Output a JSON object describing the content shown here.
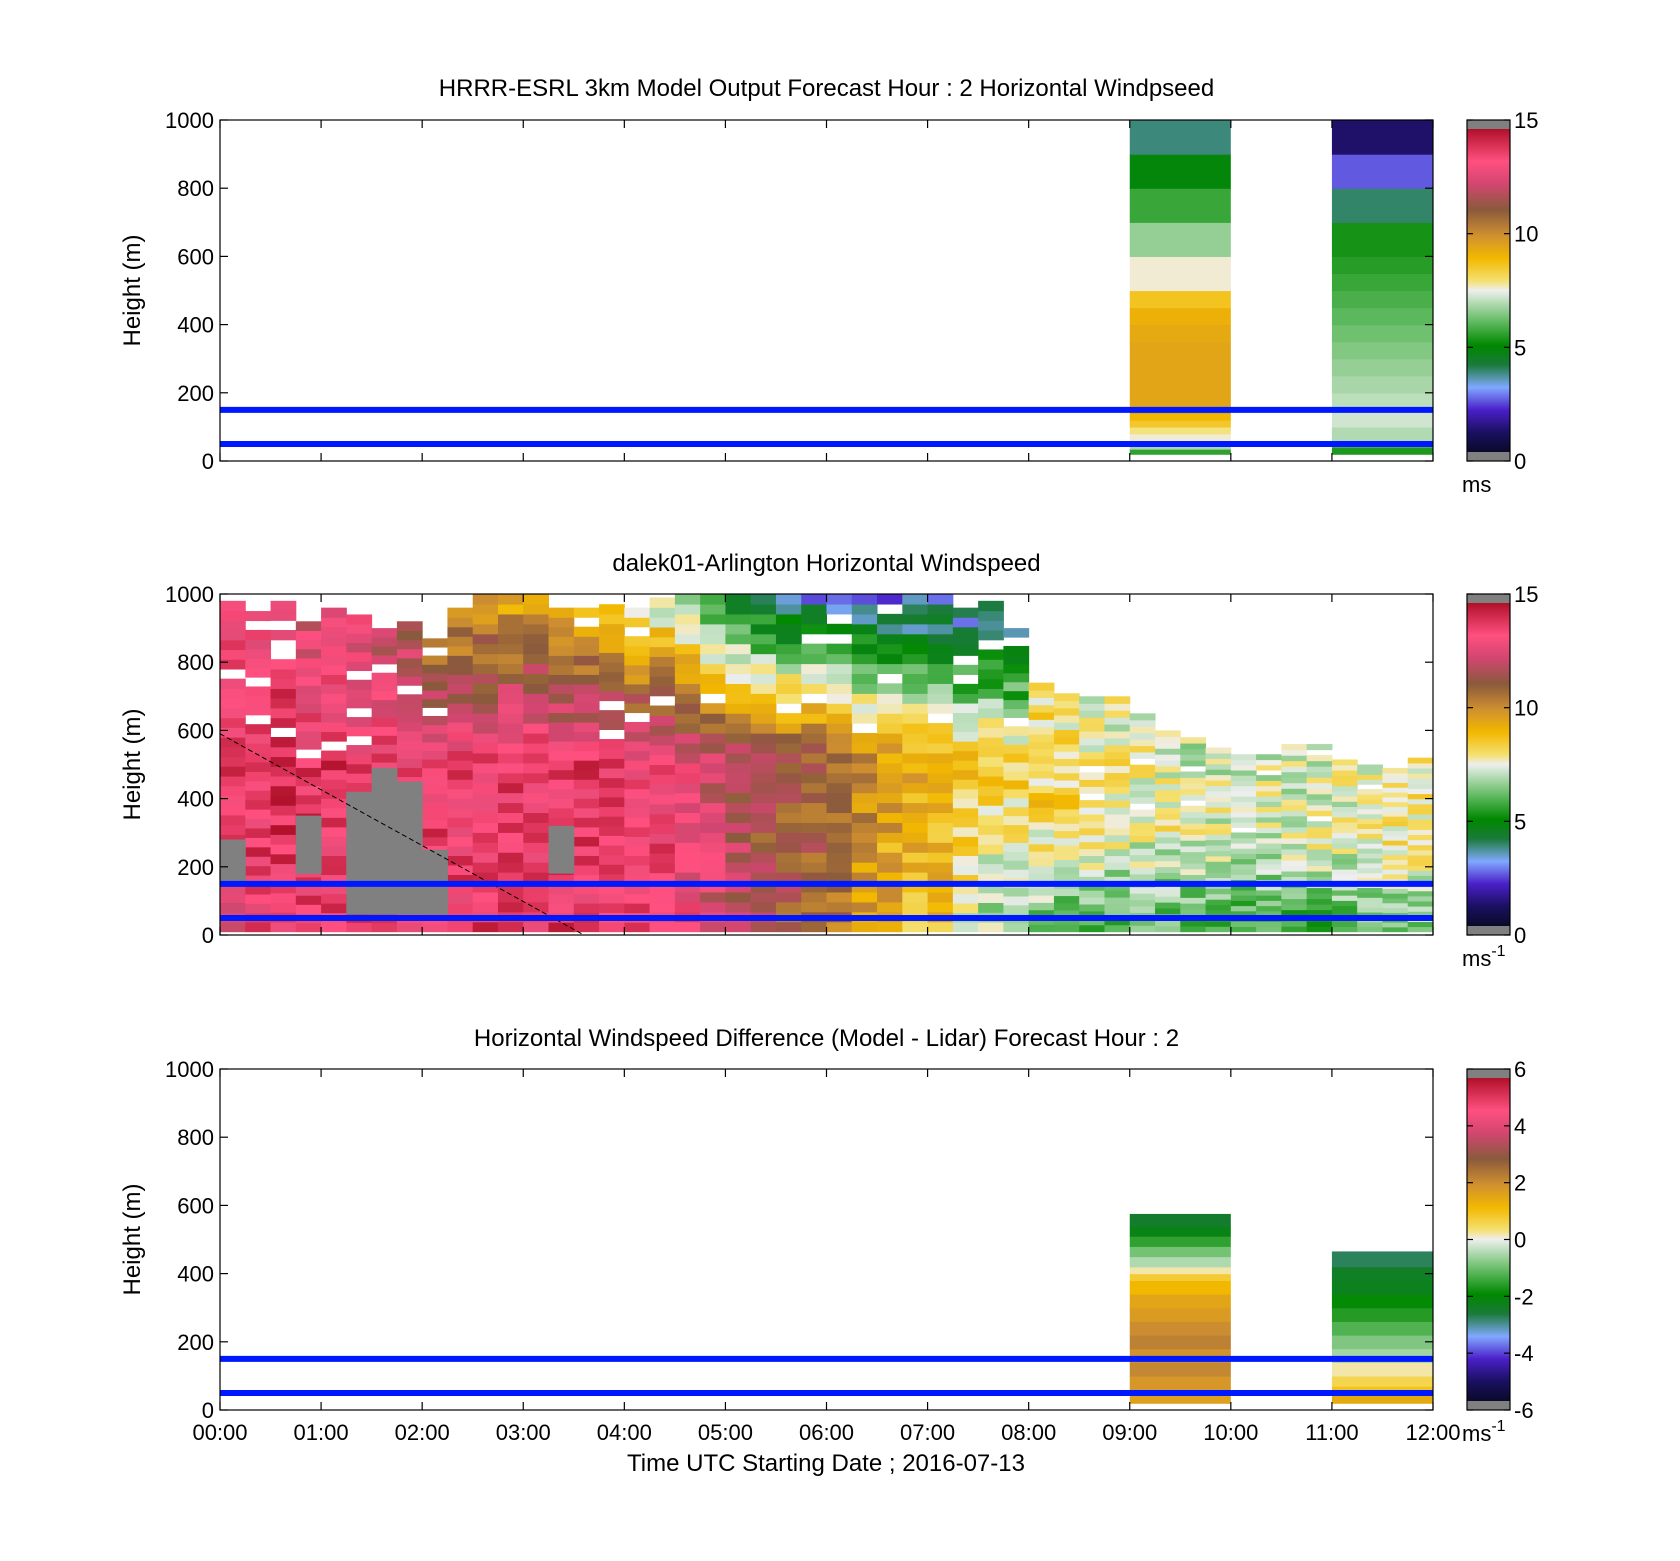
{
  "chart_data": [
    {
      "type": "heatmap",
      "title": "HRRR-ESRL 3km Model Output   Forecast Hour : 2 Horizontal Windpseed",
      "xlabel": "",
      "ylabel": "Height (m)",
      "xlim": [
        0,
        12
      ],
      "ylim": [
        0,
        1000
      ],
      "x_ticks": [
        "00:00",
        "01:00",
        "02:00",
        "03:00",
        "04:00",
        "05:00",
        "06:00",
        "07:00",
        "08:00",
        "09:00",
        "10:00",
        "11:00",
        "12:00"
      ],
      "x_ticklabels_shown": false,
      "y_ticks": [
        0,
        200,
        400,
        600,
        800,
        1000
      ],
      "colorbar": {
        "range": [
          0,
          15
        ],
        "ticks": [
          0,
          5,
          10,
          15
        ],
        "unit": "ms",
        "unit_sup": ""
      },
      "reference_lines_m": [
        50,
        150
      ],
      "columns": [
        {
          "x": [
            9,
            10
          ],
          "cells": [
            {
              "z0": 20,
              "z1": 35,
              "v": 5.5
            },
            {
              "z0": 35,
              "z1": 60,
              "v": 6.8
            },
            {
              "z0": 60,
              "z1": 80,
              "v": 7.6
            },
            {
              "z0": 80,
              "z1": 100,
              "v": 7.9
            },
            {
              "z0": 100,
              "z1": 120,
              "v": 8.6
            },
            {
              "z0": 120,
              "z1": 140,
              "v": 9.0
            },
            {
              "z0": 140,
              "z1": 350,
              "v": 9.5
            },
            {
              "z0": 350,
              "z1": 400,
              "v": 9.4
            },
            {
              "z0": 400,
              "z1": 450,
              "v": 9.2
            },
            {
              "z0": 450,
              "z1": 500,
              "v": 8.7
            },
            {
              "z0": 500,
              "z1": 600,
              "v": 7.6
            },
            {
              "z0": 600,
              "z1": 700,
              "v": 6.6
            },
            {
              "z0": 700,
              "z1": 800,
              "v": 5.6
            },
            {
              "z0": 800,
              "z1": 900,
              "v": 4.8
            },
            {
              "z0": 900,
              "z1": 1000,
              "v": 3.7
            }
          ]
        },
        {
          "x": [
            11,
            12
          ],
          "cells": [
            {
              "z0": 20,
              "z1": 40,
              "v": 5.3
            },
            {
              "z0": 40,
              "z1": 60,
              "v": 5.8
            },
            {
              "z0": 60,
              "z1": 100,
              "v": 6.9
            },
            {
              "z0": 100,
              "z1": 150,
              "v": 7.2
            },
            {
              "z0": 150,
              "z1": 200,
              "v": 7.0
            },
            {
              "z0": 200,
              "z1": 250,
              "v": 6.8
            },
            {
              "z0": 250,
              "z1": 300,
              "v": 6.6
            },
            {
              "z0": 300,
              "z1": 350,
              "v": 6.4
            },
            {
              "z0": 350,
              "z1": 400,
              "v": 6.2
            },
            {
              "z0": 400,
              "z1": 450,
              "v": 6.0
            },
            {
              "z0": 450,
              "z1": 500,
              "v": 5.8
            },
            {
              "z0": 500,
              "z1": 550,
              "v": 5.6
            },
            {
              "z0": 550,
              "z1": 600,
              "v": 5.4
            },
            {
              "z0": 600,
              "z1": 700,
              "v": 5.2
            },
            {
              "z0": 700,
              "z1": 800,
              "v": 3.8
            },
            {
              "z0": 800,
              "z1": 900,
              "v": 2.4
            },
            {
              "z0": 900,
              "z1": 1000,
              "v": 1.0
            }
          ]
        }
      ]
    },
    {
      "type": "heatmap",
      "title": "dalek01-Arlington  Horizontal Windspeed",
      "xlabel": "",
      "ylabel": "Height (m)",
      "xlim": [
        0,
        12
      ],
      "ylim": [
        0,
        1000
      ],
      "x_ticks": [
        "00:00",
        "01:00",
        "02:00",
        "03:00",
        "04:00",
        "05:00",
        "06:00",
        "07:00",
        "08:00",
        "09:00",
        "10:00",
        "11:00",
        "12:00"
      ],
      "x_ticklabels_shown": false,
      "y_ticks": [
        0,
        200,
        400,
        600,
        800,
        1000
      ],
      "colorbar": {
        "range": [
          0,
          15
        ],
        "ticks": [
          0,
          5,
          10,
          15
        ],
        "unit": "ms",
        "unit_sup": "-1"
      },
      "reference_lines_m": [
        50,
        150
      ],
      "dashed_line": {
        "x": [
          0,
          3.6
        ],
        "y": [
          590,
          0
        ]
      },
      "profiles_time_h": [
        0.0,
        0.25,
        0.5,
        0.75,
        1.0,
        1.25,
        1.5,
        1.75,
        2.0,
        2.25,
        2.5,
        2.75,
        3.0,
        3.25,
        3.5,
        3.75,
        4.0,
        4.25,
        4.5,
        4.75,
        5.0,
        5.25,
        5.5,
        5.75,
        6.0,
        6.25,
        6.5,
        6.75,
        7.0,
        7.25,
        7.5,
        7.75,
        8.0,
        8.25,
        8.5,
        8.75,
        9.0,
        9.25,
        9.5,
        9.75,
        10.0,
        10.25,
        10.5,
        10.75,
        11.0,
        11.25,
        11.5,
        11.75
      ],
      "profile_top_m": [
        980,
        950,
        980,
        920,
        960,
        940,
        900,
        920,
        870,
        960,
        1000,
        1000,
        1000,
        960,
        960,
        970,
        960,
        990,
        1000,
        1000,
        1000,
        1000,
        1000,
        1000,
        1000,
        1000,
        1000,
        1000,
        1000,
        960,
        980,
        900,
        740,
        730,
        700,
        700,
        650,
        600,
        580,
        550,
        530,
        530,
        560,
        560,
        530,
        500,
        490,
        520
      ],
      "profile_speed_low_ms": [
        13.2,
        13.6,
        13.9,
        13.8,
        13.7,
        13.9,
        13.8,
        13.6,
        13.5,
        13.7,
        13.9,
        13.8,
        13.6,
        13.9,
        13.7,
        13.8,
        13.5,
        13.6,
        13.2,
        12.6,
        12.0,
        11.6,
        11.3,
        11.1,
        10.6,
        9.6,
        9.2,
        8.9,
        8.8,
        7.3,
        6.8,
        6.4,
        6.2,
        6.0,
        5.9,
        5.9,
        5.8,
        5.8,
        5.7,
        5.6,
        5.6,
        5.5,
        5.6,
        5.7,
        5.6,
        5.8,
        6.2,
        6.4
      ],
      "profile_speed_mid_ms": [
        13.8,
        14.1,
        14.2,
        13.9,
        14.0,
        13.6,
        13.9,
        13.7,
        13.9,
        13.8,
        13.6,
        13.9,
        14.0,
        13.8,
        13.9,
        13.6,
        13.6,
        13.5,
        13.0,
        12.5,
        12.0,
        11.6,
        11.4,
        11.3,
        11.0,
        10.3,
        9.8,
        9.3,
        9.2,
        8.9,
        8.7,
        8.5,
        8.4,
        8.3,
        8.1,
        7.9,
        7.8,
        7.6,
        7.5,
        7.4,
        7.4,
        7.3,
        7.4,
        7.5,
        7.6,
        7.7,
        7.8,
        8.0
      ],
      "profile_speed_top_ms": [
        13.1,
        12.8,
        13.4,
        12.4,
        12.7,
        12.9,
        12.3,
        11.6,
        10.4,
        9.6,
        9.4,
        9.2,
        9.1,
        8.8,
        9.0,
        8.6,
        7.5,
        6.9,
        5.8,
        4.9,
        3.9,
        3.4,
        2.8,
        2.6,
        2.4,
        2.2,
        2.3,
        2.5,
        2.4,
        2.7,
        3.0,
        3.6,
        7.9,
        7.8,
        7.6,
        7.4,
        7.5,
        7.2,
        7.1,
        7.2,
        7.3,
        7.2,
        7.1,
        7.2,
        7.4,
        7.5,
        7.6,
        7.8
      ],
      "gray_region": [
        {
          "x": [
            0.0,
            0.25
          ],
          "z0": 150,
          "z1": 280
        },
        {
          "x": [
            0.75,
            1.0
          ],
          "z0": 180,
          "z1": 350
        },
        {
          "x": [
            1.25,
            1.5
          ],
          "z0": 60,
          "z1": 420
        },
        {
          "x": [
            1.5,
            1.75
          ],
          "z0": 60,
          "z1": 490
        },
        {
          "x": [
            1.75,
            2.0
          ],
          "z0": 60,
          "z1": 450
        },
        {
          "x": [
            2.0,
            2.25
          ],
          "z0": 60,
          "z1": 250
        },
        {
          "x": [
            3.25,
            3.5
          ],
          "z0": 180,
          "z1": 320
        }
      ]
    },
    {
      "type": "heatmap",
      "title": "Horizontal Windspeed Difference (Model - Lidar) Forecast Hour : 2",
      "xlabel": "Time UTC  Starting Date ; 2016-07-13",
      "ylabel": "Height (m)",
      "xlim": [
        0,
        12
      ],
      "ylim": [
        0,
        1000
      ],
      "x_ticks": [
        "00:00",
        "01:00",
        "02:00",
        "03:00",
        "04:00",
        "05:00",
        "06:00",
        "07:00",
        "08:00",
        "09:00",
        "10:00",
        "11:00",
        "12:00"
      ],
      "x_ticklabels_shown": true,
      "y_ticks": [
        0,
        200,
        400,
        600,
        800,
        1000
      ],
      "colorbar": {
        "range": [
          -6,
          6
        ],
        "ticks": [
          -6,
          -4,
          -2,
          0,
          2,
          4,
          6
        ],
        "unit": "ms",
        "unit_sup": "-1"
      },
      "reference_lines_m": [
        50,
        150
      ],
      "columns": [
        {
          "x": [
            9,
            10
          ],
          "cells": [
            {
              "z0": 20,
              "z1": 60,
              "v": 1.7
            },
            {
              "z0": 60,
              "z1": 100,
              "v": 1.9
            },
            {
              "z0": 100,
              "z1": 140,
              "v": 2.2
            },
            {
              "z0": 140,
              "z1": 180,
              "v": 2.0
            },
            {
              "z0": 180,
              "z1": 220,
              "v": 2.3
            },
            {
              "z0": 220,
              "z1": 260,
              "v": 2.1
            },
            {
              "z0": 260,
              "z1": 300,
              "v": 1.8
            },
            {
              "z0": 300,
              "z1": 340,
              "v": 1.6
            },
            {
              "z0": 340,
              "z1": 380,
              "v": 1.2
            },
            {
              "z0": 380,
              "z1": 400,
              "v": 0.8
            },
            {
              "z0": 400,
              "z1": 420,
              "v": 0.2
            },
            {
              "z0": 420,
              "z1": 450,
              "v": -0.5
            },
            {
              "z0": 450,
              "z1": 480,
              "v": -1.0
            },
            {
              "z0": 480,
              "z1": 510,
              "v": -1.6
            },
            {
              "z0": 510,
              "z1": 540,
              "v": -2.3
            },
            {
              "z0": 540,
              "z1": 575,
              "v": -2.6
            }
          ]
        },
        {
          "x": [
            11,
            12
          ],
          "cells": [
            {
              "z0": 20,
              "z1": 45,
              "v": 1.5
            },
            {
              "z0": 45,
              "z1": 70,
              "v": 1.0
            },
            {
              "z0": 70,
              "z1": 100,
              "v": 0.6
            },
            {
              "z0": 100,
              "z1": 140,
              "v": 0.2
            },
            {
              "z0": 140,
              "z1": 180,
              "v": -0.6
            },
            {
              "z0": 180,
              "z1": 220,
              "v": -0.9
            },
            {
              "z0": 220,
              "z1": 260,
              "v": -1.3
            },
            {
              "z0": 260,
              "z1": 300,
              "v": -1.7
            },
            {
              "z0": 300,
              "z1": 340,
              "v": -2.0
            },
            {
              "z0": 340,
              "z1": 380,
              "v": -2.4
            },
            {
              "z0": 380,
              "z1": 420,
              "v": -2.5
            },
            {
              "z0": 420,
              "z1": 465,
              "v": -2.9
            }
          ]
        }
      ]
    }
  ]
}
